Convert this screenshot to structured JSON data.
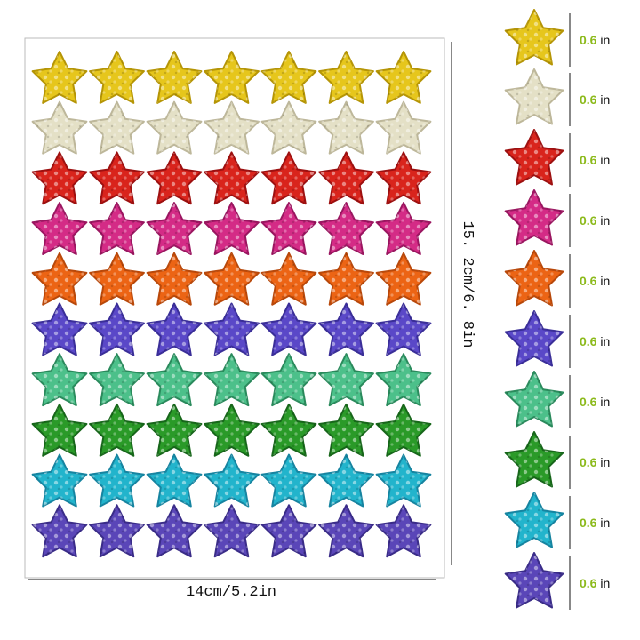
{
  "dimensions": {
    "height": "15. 2cm/6. 8in",
    "width": "14cm/5.2in"
  },
  "star_sizes": [
    {
      "value": "0.6",
      "unit": "in"
    },
    {
      "value": "0.6",
      "unit": "in"
    },
    {
      "value": "0.6",
      "unit": "in"
    },
    {
      "value": "0.6",
      "unit": "in"
    },
    {
      "value": "0.6",
      "unit": "in"
    },
    {
      "value": "0.6",
      "unit": "in"
    },
    {
      "value": "0.6",
      "unit": "in"
    },
    {
      "value": "0.6",
      "unit": "in"
    },
    {
      "value": "0.6",
      "unit": "in"
    },
    {
      "value": "0.6",
      "unit": "in"
    }
  ]
}
